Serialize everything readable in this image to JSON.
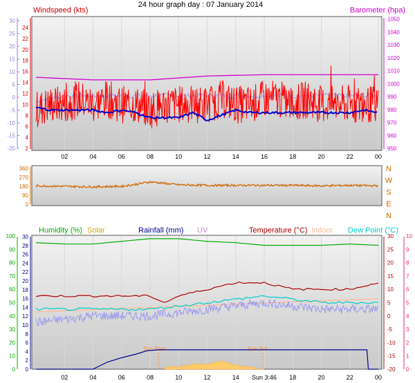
{
  "title": "24 hour graph day : 07 January 2014",
  "colors": {
    "wind_speed": "#cc0000",
    "wind_line": "#ff0000",
    "barometer": "#cc00cc",
    "temp_blue": "#0000cc",
    "lavender": "#9999ee",
    "direction": "#cc6600",
    "humidity": "#00aa00",
    "solar": "#ccaa00",
    "rainfall": "#000088",
    "uv": "#cc88cc",
    "temperature": "#aa0000",
    "indoor": "#ffbb99",
    "dewpoint": "#00cccc",
    "right_temp": "#ee2277",
    "sun_marker": "#ff8833",
    "gridbg_top": "#f2f2f2",
    "gridbg_bottom": "#c8c8c8"
  },
  "chart_data": [
    {
      "type": "line",
      "name": "wind-barometer-panel",
      "left_axis_1": {
        "label": "",
        "ticks": [
          "30",
          "25",
          "20",
          "15",
          "10",
          "5",
          "0",
          "-5",
          "-10",
          "-15",
          "-20"
        ]
      },
      "left_axis_2": {
        "label": "Windspeed (kts)",
        "ticks": [
          "24",
          "22",
          "20",
          "18",
          "16",
          "14",
          "12",
          "10",
          "8",
          "6",
          "4",
          "2"
        ],
        "ylim": [
          2,
          25
        ]
      },
      "right_axis": {
        "label": "Barometer (hpa)",
        "ticks": [
          "1050",
          "1040",
          "1030",
          "1020",
          "1010",
          "1000",
          "990",
          "980",
          "970",
          "960",
          "950"
        ],
        "ylim": [
          950,
          1052
        ]
      },
      "x_ticks": [
        "02",
        "04",
        "06",
        "08",
        "10",
        "12",
        "14",
        "16",
        "18",
        "20",
        "22",
        "00"
      ],
      "series": [
        {
          "name": "Windspeed (kts)",
          "x": [
            0,
            1,
            2,
            3,
            4,
            5,
            6,
            7,
            8,
            9,
            10,
            11,
            12,
            13,
            14,
            15,
            16,
            17,
            18,
            19,
            20,
            21,
            22,
            23,
            24
          ],
          "values": [
            9,
            10,
            10,
            11,
            10,
            11,
            10,
            10,
            9,
            10,
            10,
            10,
            10,
            11,
            10,
            10,
            11,
            11,
            10,
            11,
            10,
            10,
            10,
            10,
            10
          ]
        },
        {
          "name": "Barometer (hpa)",
          "x": [
            0,
            4,
            8,
            12,
            16,
            20,
            24
          ],
          "values": [
            1005,
            1003,
            1003,
            1006,
            1007,
            1007,
            1007
          ]
        },
        {
          "x": [
            0,
            1,
            2,
            3,
            4,
            5,
            6,
            7,
            8,
            9,
            10,
            11,
            12,
            13,
            14,
            15,
            16,
            17,
            18,
            19,
            20,
            21,
            22,
            23,
            24
          ],
          "values": [
            -4,
            -5,
            -5,
            -5,
            -5,
            -6,
            -5,
            -6,
            -8,
            -8,
            -8,
            -6,
            -9,
            -7,
            -5,
            -6,
            -6,
            -6,
            -6,
            -6,
            -6,
            -6,
            -6,
            -5,
            -6
          ]
        },
        {
          "x": [
            0,
            2,
            4,
            6,
            8,
            10,
            12,
            14,
            16,
            18,
            20,
            22,
            24
          ],
          "values": [
            3,
            4,
            4,
            4,
            4,
            4,
            4,
            4,
            4,
            4,
            4,
            4,
            4
          ]
        }
      ]
    },
    {
      "type": "line",
      "name": "wind-direction-panel",
      "left_axis": {
        "ticks": [
          "360",
          "270",
          "180",
          "90",
          "0"
        ],
        "ylim": [
          0,
          360
        ]
      },
      "right_axis": {
        "ticks": [
          "N",
          "W",
          "S",
          "E",
          "N"
        ]
      },
      "series": [
        {
          "name": "Wind direction",
          "x": [
            0,
            2,
            4,
            6,
            7,
            8,
            9,
            10,
            12,
            14,
            16,
            18,
            20,
            22,
            24
          ],
          "values": [
            185,
            180,
            175,
            180,
            200,
            225,
            210,
            195,
            190,
            190,
            190,
            190,
            185,
            190,
            185
          ]
        }
      ]
    },
    {
      "type": "line",
      "name": "humidity-temperature-panel",
      "legend": [
        "Humidity (%)",
        "Solar",
        "Rainfall (mm)",
        "UV",
        "Temperature (°C)",
        "Indoor",
        "Dew Point (°C)"
      ],
      "left_axis_1": {
        "label": "Humidity (%)",
        "ticks": [
          "100",
          "90",
          "80",
          "70",
          "60",
          "50",
          "40",
          "30",
          "20",
          "10",
          "0"
        ],
        "ylim": [
          0,
          100
        ]
      },
      "left_axis_2": {
        "ticks": [
          "30",
          "28",
          "26",
          "24",
          "22",
          "20",
          "18",
          "16",
          "14",
          "12",
          "10",
          "8",
          "6",
          "4",
          "2",
          "0"
        ],
        "ylim": [
          0,
          30
        ]
      },
      "right_axis_1": {
        "label": "Temperature (°C)",
        "ticks": [
          "30",
          "25",
          "20",
          "15",
          "10",
          "5",
          "0",
          "-5",
          "-10",
          "-15",
          "-20"
        ],
        "ylim": [
          -20,
          30
        ]
      },
      "right_axis_2": {
        "ticks": [
          "10",
          "9",
          "8",
          "7",
          "6",
          "5",
          "4",
          "3",
          "2",
          "1",
          "0"
        ],
        "ylim": [
          0,
          10
        ]
      },
      "annotations": [
        "Sun Rise",
        "Sun Set"
      ],
      "x_ticks": [
        "02",
        "04",
        "06",
        "08",
        "10",
        "12",
        "14",
        "Sun 3:46",
        "18",
        "20",
        "22",
        "00"
      ],
      "series": [
        {
          "name": "Humidity (%)",
          "x": [
            0,
            2,
            4,
            6,
            8,
            9,
            10,
            12,
            14,
            16,
            18,
            20,
            22,
            24
          ],
          "values": [
            95,
            94,
            94,
            96,
            98,
            98,
            98,
            96,
            95,
            93,
            93,
            93,
            94,
            93
          ]
        },
        {
          "name": "Temperature (°C)",
          "x": [
            0,
            4,
            8,
            9,
            10,
            12,
            14,
            16,
            18,
            20,
            22,
            24
          ],
          "values": [
            5.5,
            5.5,
            5.5,
            5,
            5.5,
            6,
            6.5,
            6.5,
            6,
            6,
            6,
            6.5
          ]
        },
        {
          "name": "Indoor",
          "x": [
            0,
            4,
            8,
            12,
            16,
            20,
            24
          ],
          "values": [
            12,
            12.5,
            13,
            13.5,
            14,
            14.5,
            15
          ]
        },
        {
          "name": "Dew Point (°C)",
          "x": [
            0,
            4,
            8,
            12,
            16,
            20,
            24
          ],
          "values": [
            4.5,
            4.5,
            4.5,
            5,
            5.5,
            5,
            5
          ]
        },
        {
          "x": [
            0,
            4,
            8,
            12,
            16,
            20,
            24
          ],
          "values": [
            3.5,
            4,
            4,
            4.5,
            5,
            4.5,
            4.5
          ]
        },
        {
          "name": "Rainfall (mm)",
          "x": [
            0,
            4,
            5,
            6,
            7,
            7.8,
            8.6,
            9.5,
            12,
            16,
            20,
            23.2,
            23.3,
            24
          ],
          "values": [
            0,
            0,
            1.6,
            2.6,
            3.4,
            4.2,
            4.4,
            4.4,
            4.4,
            4.4,
            4.4,
            4.4,
            0,
            0
          ]
        },
        {
          "name": "Solar",
          "x": [
            9,
            10,
            11,
            12,
            13,
            14,
            15,
            16
          ],
          "values": [
            0.3,
            0.7,
            1.0,
            1.2,
            1.8,
            0.9,
            0.4,
            0.1
          ]
        }
      ]
    }
  ]
}
